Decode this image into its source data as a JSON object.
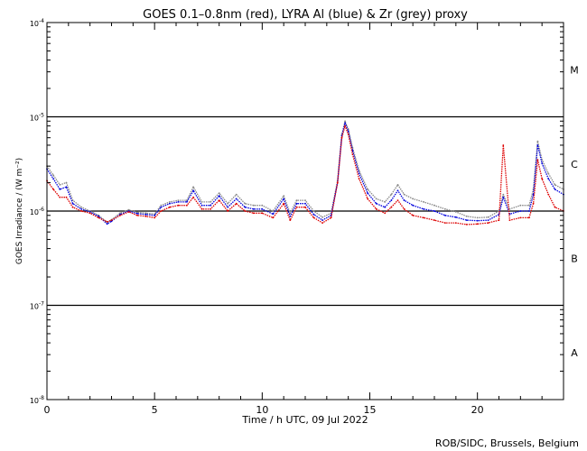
{
  "chart_data": {
    "type": "line",
    "title": "GOES 0.1–0.8nm (red), LYRA Al (blue) & Zr (grey) proxy",
    "xlabel": "Time / h UTC, 09 Jul 2022",
    "ylabel": "GOES Irradiance / (W m⁻²)",
    "xlim": [
      0,
      24
    ],
    "ylim": [
      1e-08,
      0.0001
    ],
    "yscale": "log",
    "x_ticks": [
      "0",
      "5",
      "10",
      "15",
      "20"
    ],
    "y_ticks": [
      {
        "base": "10",
        "exp": "-4",
        "value": 0.0001
      },
      {
        "base": "10",
        "exp": "-5",
        "value": 1e-05
      },
      {
        "base": "10",
        "exp": "-6",
        "value": 1e-06
      },
      {
        "base": "10",
        "exp": "-7",
        "value": 1e-07
      },
      {
        "base": "10",
        "exp": "-8",
        "value": 1e-08
      }
    ],
    "flare_classes": [
      {
        "label": "M",
        "value": 3.16e-05
      },
      {
        "label": "C",
        "value": 3.16e-06
      },
      {
        "label": "B",
        "value": 3.16e-07
      },
      {
        "label": "A",
        "value": 3.16e-08
      }
    ],
    "threshold_lines": [
      1e-05,
      1e-06,
      1e-07
    ],
    "colors": {
      "red": "#dd0000",
      "blue": "#0000dd",
      "grey": "#888888",
      "axis": "#000000"
    },
    "x": [
      0,
      0.3,
      0.6,
      0.9,
      1.2,
      1.6,
      2.0,
      2.4,
      2.8,
      3.0,
      3.4,
      3.8,
      4.2,
      4.6,
      5.0,
      5.3,
      5.7,
      6.1,
      6.5,
      6.8,
      7.2,
      7.6,
      8.0,
      8.4,
      8.8,
      9.2,
      9.6,
      10.0,
      10.5,
      11.0,
      11.3,
      11.6,
      12.0,
      12.4,
      12.8,
      13.2,
      13.5,
      13.7,
      13.85,
      14.0,
      14.2,
      14.5,
      14.9,
      15.3,
      15.7,
      16.0,
      16.3,
      16.6,
      17.0,
      17.5,
      18.0,
      18.5,
      19.0,
      19.5,
      20.0,
      20.5,
      21.0,
      21.2,
      21.5,
      22.0,
      22.4,
      22.6,
      22.8,
      23.0,
      23.3,
      23.6,
      24.0
    ],
    "series": [
      {
        "name": "GOES 0.1–0.8nm (red)",
        "values": [
          2.1e-06,
          1.7e-06,
          1.4e-06,
          1.4e-06,
          1.1e-06,
          1e-06,
          9.5e-07,
          8.5e-07,
          7.7e-07,
          8e-07,
          9e-07,
          9.8e-07,
          9e-07,
          8.8e-07,
          8.5e-07,
          1e-06,
          1.1e-06,
          1.15e-06,
          1.15e-06,
          1.4e-06,
          1.05e-06,
          1.05e-06,
          1.3e-06,
          1e-06,
          1.2e-06,
          1e-06,
          9.5e-07,
          9.5e-07,
          8.5e-07,
          1.2e-06,
          8e-07,
          1.1e-06,
          1.1e-06,
          8.5e-07,
          7.5e-07,
          8.5e-07,
          2e-06,
          6e-06,
          8e-06,
          6.5e-06,
          4e-06,
          2.2e-06,
          1.35e-06,
          1.05e-06,
          9.5e-07,
          1.1e-06,
          1.3e-06,
          1.05e-06,
          9e-07,
          8.5e-07,
          8e-07,
          7.5e-07,
          7.5e-07,
          7.2e-07,
          7.3e-07,
          7.5e-07,
          8e-07,
          5e-06,
          8e-07,
          8.5e-07,
          8.5e-07,
          1.2e-06,
          3.5e-06,
          2.2e-06,
          1.5e-06,
          1.1e-06,
          1e-06
        ]
      },
      {
        "name": "LYRA Al (blue)",
        "values": [
          2.8e-06,
          2.2e-06,
          1.7e-06,
          1.8e-06,
          1.2e-06,
          1.05e-06,
          9.8e-07,
          8.8e-07,
          7.3e-07,
          7.8e-07,
          9.2e-07,
          1e-06,
          9.4e-07,
          9.2e-07,
          9e-07,
          1.1e-06,
          1.2e-06,
          1.25e-06,
          1.25e-06,
          1.65e-06,
          1.15e-06,
          1.15e-06,
          1.45e-06,
          1.1e-06,
          1.35e-06,
          1.1e-06,
          1.05e-06,
          1.05e-06,
          9.3e-07,
          1.35e-06,
          8.8e-07,
          1.2e-06,
          1.2e-06,
          9.2e-07,
          8e-07,
          9e-07,
          2e-06,
          6.3e-06,
          8.6e-06,
          7e-06,
          4.4e-06,
          2.5e-06,
          1.55e-06,
          1.2e-06,
          1.1e-06,
          1.3e-06,
          1.65e-06,
          1.3e-06,
          1.15e-06,
          1.05e-06,
          1e-06,
          9e-07,
          8.6e-07,
          8e-07,
          7.9e-07,
          8e-07,
          9.2e-07,
          1.4e-06,
          9.3e-07,
          1e-06,
          1e-06,
          1.5e-06,
          5e-06,
          3.2e-06,
          2.2e-06,
          1.7e-06,
          1.5e-06
        ]
      },
      {
        "name": "LYRA Zr (grey)",
        "values": [
          3e-06,
          2.4e-06,
          1.9e-06,
          2e-06,
          1.3e-06,
          1.1e-06,
          1e-06,
          9e-07,
          7.6e-07,
          8.1e-07,
          9.5e-07,
          1.03e-06,
          9.7e-07,
          9.5e-07,
          9.3e-07,
          1.15e-06,
          1.25e-06,
          1.3e-06,
          1.3e-06,
          1.8e-06,
          1.25e-06,
          1.25e-06,
          1.55e-06,
          1.2e-06,
          1.5e-06,
          1.2e-06,
          1.15e-06,
          1.15e-06,
          1e-06,
          1.45e-06,
          9.5e-07,
          1.3e-06,
          1.3e-06,
          1e-06,
          8.6e-07,
          9.5e-07,
          2.1e-06,
          6.5e-06,
          9e-06,
          7.4e-06,
          4.7e-06,
          2.7e-06,
          1.7e-06,
          1.35e-06,
          1.25e-06,
          1.5e-06,
          1.9e-06,
          1.5e-06,
          1.35e-06,
          1.25e-06,
          1.15e-06,
          1.05e-06,
          9.8e-07,
          8.8e-07,
          8.5e-07,
          8.6e-07,
          1e-06,
          1.5e-06,
          1.05e-06,
          1.15e-06,
          1.15e-06,
          1.7e-06,
          5.5e-06,
          3.5e-06,
          2.5e-06,
          1.9e-06,
          1.7e-06
        ]
      }
    ]
  },
  "footer": "ROB/SIDC, Brussels, Belgium"
}
